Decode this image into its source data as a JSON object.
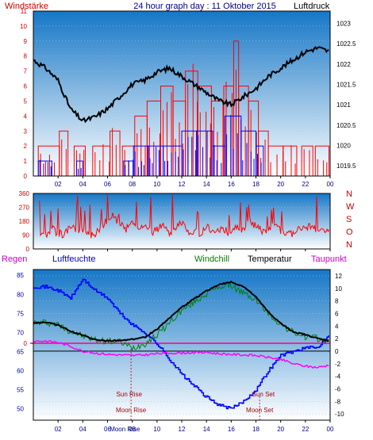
{
  "header": {
    "left_label": "Windstärke",
    "title": "24 hour graph day : 11 Oktober 2015",
    "right_label": "Luftdruck"
  },
  "colors": {
    "background": "#ffffff",
    "plot_top": "#1677c6",
    "plot_bottom": "#ffffff",
    "wind_gust": "#ff0000",
    "wind_speed": "#0000ff",
    "pressure": "#000000",
    "wind_dir": "#ff0000",
    "humidity": "#0000ff",
    "temperature": "#000000",
    "windchill": "#008000",
    "dewpoint": "#ff00ff",
    "zero_line": "#ff0080",
    "left_axis_red": "#cc0000",
    "blue_axis": "#000088",
    "right_axis": "#000000"
  },
  "chart_data": [
    {
      "type": "bar",
      "name": "wind-pressure",
      "x_ticks": [
        "02",
        "04",
        "06",
        "08",
        "10",
        "12",
        "14",
        "16",
        "18",
        "20",
        "22",
        "00"
      ],
      "left_axis": {
        "label": "Windstärke",
        "ticks": [
          "0",
          "1",
          "2",
          "3",
          "4",
          "5",
          "6",
          "7",
          "8",
          "9",
          "10",
          "11"
        ],
        "ylim": [
          0,
          11
        ]
      },
      "right_axis": {
        "label": "Luftdruck",
        "ticks": [
          "1019.5",
          "1020",
          "1020.5",
          "1021",
          "1021.5",
          "1022",
          "1022.5",
          "1023"
        ],
        "ylim": [
          1019.25,
          1023.3
        ]
      },
      "xlim": [
        0,
        24
      ],
      "gust_segments": [
        {
          "x": [
            0.4,
            2.1
          ],
          "v": 2
        },
        {
          "x": [
            2.1,
            2.8
          ],
          "v": 3
        },
        {
          "x": [
            3.3,
            4.2
          ],
          "v": 2
        },
        {
          "x": [
            4.8,
            6.2
          ],
          "v": 2
        },
        {
          "x": [
            6.2,
            7.0
          ],
          "v": 3
        },
        {
          "x": [
            7.2,
            8.2
          ],
          "v": 2
        },
        {
          "x": [
            8.2,
            9.2
          ],
          "v": 4
        },
        {
          "x": [
            9.2,
            10.3
          ],
          "v": 5
        },
        {
          "x": [
            10.3,
            11.3
          ],
          "v": 6
        },
        {
          "x": [
            11.3,
            12.3
          ],
          "v": 5
        },
        {
          "x": [
            12.3,
            13.3
          ],
          "v": 7
        },
        {
          "x": [
            13.3,
            14.4
          ],
          "v": 6
        },
        {
          "x": [
            14.4,
            15.4
          ],
          "v": 5
        },
        {
          "x": [
            15.4,
            16.2
          ],
          "v": 6
        },
        {
          "x": [
            16.2,
            16.6
          ],
          "v": 9
        },
        {
          "x": [
            16.6,
            17.4
          ],
          "v": 6
        },
        {
          "x": [
            17.4,
            18.2
          ],
          "v": 5
        },
        {
          "x": [
            18.2,
            19.0
          ],
          "v": 3
        },
        {
          "x": [
            19.0,
            20.2
          ],
          "v": 2
        },
        {
          "x": [
            20.2,
            21.3
          ],
          "v": 2
        },
        {
          "x": [
            21.7,
            22.6
          ],
          "v": 2
        },
        {
          "x": [
            22.8,
            23.9
          ],
          "v": 2
        }
      ],
      "speed_segments": [
        {
          "x": [
            0.4,
            1.5
          ],
          "v": 1
        },
        {
          "x": [
            3.5,
            4.0
          ],
          "v": 1
        },
        {
          "x": [
            7.3,
            8.1
          ],
          "v": 1
        },
        {
          "x": [
            8.1,
            9.3
          ],
          "v": 2
        },
        {
          "x": [
            9.3,
            10.5
          ],
          "v": 2
        },
        {
          "x": [
            10.5,
            12.0
          ],
          "v": 2
        },
        {
          "x": [
            12.0,
            13.2
          ],
          "v": 3
        },
        {
          "x": [
            13.2,
            14.5
          ],
          "v": 3
        },
        {
          "x": [
            14.5,
            15.5
          ],
          "v": 2
        },
        {
          "x": [
            15.5,
            16.8
          ],
          "v": 4
        },
        {
          "x": [
            16.8,
            18.0
          ],
          "v": 3
        },
        {
          "x": [
            18.0,
            18.6
          ],
          "v": 2
        }
      ],
      "pressure": {
        "x": [
          0,
          1,
          2,
          3,
          4,
          5,
          6,
          7,
          8,
          9,
          10,
          11,
          12,
          13,
          14,
          15,
          16,
          17,
          18,
          19,
          20,
          21,
          22,
          23,
          24
        ],
        "y": [
          1022.1,
          1021.9,
          1021.6,
          1020.9,
          1020.6,
          1020.7,
          1020.9,
          1021.2,
          1021.5,
          1021.6,
          1021.8,
          1021.9,
          1021.7,
          1021.5,
          1021.3,
          1021.1,
          1021.0,
          1021.2,
          1021.4,
          1021.7,
          1021.9,
          1022.1,
          1022.3,
          1022.4,
          1022.3
        ]
      }
    },
    {
      "type": "line",
      "name": "wind-direction",
      "x_ticks": [
        "02",
        "04",
        "06",
        "08",
        "10",
        "12",
        "14",
        "16",
        "18",
        "20",
        "22",
        "00"
      ],
      "left_ticks": [
        "0",
        "90",
        "180",
        "270",
        "360"
      ],
      "right_labels": [
        "N",
        "W",
        "S",
        "O",
        "N"
      ],
      "ylim": [
        0,
        360
      ],
      "series": [
        {
          "x": [
            0.5,
            1,
            1.5,
            2,
            2.5,
            3,
            3.5,
            4,
            4.5,
            5,
            5.5,
            6,
            6.5,
            7,
            7.5,
            8,
            8.5,
            9,
            9.5,
            10,
            10.5,
            11,
            11.5,
            12,
            12.5,
            13,
            13.5,
            14,
            14.5,
            15,
            15.5,
            16,
            16.5,
            17,
            17.5,
            18,
            18.5,
            19,
            19.5,
            20,
            20.5,
            21,
            21.5,
            22,
            22.5,
            23,
            23.5,
            24
          ],
          "y": [
            110,
            90,
            130,
            100,
            95,
            150,
            110,
            120,
            90,
            100,
            140,
            190,
            220,
            160,
            130,
            180,
            120,
            170,
            110,
            120,
            180,
            90,
            140,
            170,
            110,
            120,
            100,
            150,
            110,
            130,
            120,
            100,
            150,
            120,
            190,
            140,
            120,
            130,
            150,
            120,
            110,
            100,
            130,
            150,
            140,
            120,
            110,
            130
          ]
        }
      ]
    },
    {
      "type": "line",
      "name": "temperature-humidity",
      "x_ticks": [
        "02",
        "04",
        "06",
        "08",
        "10",
        "12",
        "14",
        "16",
        "18",
        "20",
        "22",
        "00"
      ],
      "left_axis": {
        "label": "Luftfeuchte",
        "ticks": [
          "50",
          "55",
          "60",
          "65",
          "70",
          "75",
          "80",
          "85"
        ],
        "ylim": [
          47,
          86.5
        ]
      },
      "right_axis": {
        "label": "Temperatur",
        "ticks": [
          "-10",
          "-8",
          "-6",
          "-4",
          "-2",
          "0",
          "2",
          "4",
          "6",
          "8",
          "10",
          "12"
        ],
        "ylim": [
          -11,
          13
        ]
      },
      "regen_axis": {
        "label": "Regen",
        "ticks": [
          "0"
        ]
      },
      "series": [
        {
          "name": "Luftfeuchte",
          "x": [
            0,
            1,
            2,
            3,
            4,
            5,
            6,
            7,
            8,
            9,
            10,
            11,
            12,
            13,
            14,
            15,
            16,
            17,
            18,
            19,
            20,
            21,
            22,
            23,
            24
          ],
          "y": [
            82,
            82,
            81,
            79,
            84,
            81,
            79,
            75,
            72,
            70,
            67,
            63,
            59,
            56,
            53,
            51,
            50,
            52,
            55,
            60,
            64,
            65,
            66,
            66,
            70
          ]
        },
        {
          "name": "Temperatur",
          "x": [
            0,
            1,
            2,
            3,
            4,
            5,
            6,
            7,
            8,
            9,
            10,
            11,
            12,
            13,
            14,
            15,
            16,
            17,
            18,
            19,
            20,
            21,
            22,
            23,
            24
          ],
          "y": [
            4.5,
            4.6,
            4.2,
            3.2,
            2.5,
            1.8,
            1.6,
            1.7,
            1.9,
            2.2,
            3.5,
            5.3,
            7.0,
            8.3,
            9.6,
            10.6,
            11.0,
            10.3,
            8.6,
            6.2,
            4.4,
            3.1,
            2.6,
            2.0,
            1.6
          ]
        },
        {
          "name": "Windchill",
          "x": [
            0,
            1,
            2,
            3,
            4,
            5,
            6,
            7,
            8,
            9,
            10,
            11,
            12,
            13,
            14,
            15,
            16,
            17,
            18,
            19,
            20,
            21,
            22,
            23,
            24
          ],
          "y": [
            4.5,
            4.6,
            4.2,
            3.2,
            2.4,
            1.8,
            1.6,
            1.5,
            0.5,
            1.2,
            2.6,
            4.5,
            6.5,
            7.8,
            9.2,
            10.3,
            10.5,
            9.2,
            8.2,
            6.0,
            4.3,
            3.0,
            2.3,
            2.0,
            1.5
          ]
        },
        {
          "name": "Taupunkt",
          "x": [
            0,
            1,
            2,
            3,
            4,
            5,
            6,
            7,
            8,
            9,
            10,
            11,
            12,
            13,
            14,
            15,
            16,
            17,
            18,
            19,
            20,
            21,
            22,
            23,
            24
          ],
          "y": [
            1.6,
            1.6,
            1.4,
            0.8,
            0.0,
            -0.3,
            -0.5,
            -0.6,
            -0.7,
            -0.6,
            -0.4,
            -0.3,
            -0.3,
            -0.2,
            -0.2,
            -0.4,
            -0.5,
            -0.6,
            -0.7,
            -1.0,
            -1.3,
            -2.0,
            -2.4,
            -2.6,
            -2.2
          ]
        }
      ],
      "events": [
        {
          "label": "Sun Rise",
          "hour": 7.75,
          "row": 1
        },
        {
          "label": "Moon Rise",
          "hour": 7.9,
          "row": 2
        },
        {
          "label": "Sun Set",
          "hour": 18.6,
          "row": 1
        },
        {
          "label": "Moon Set",
          "hour": 18.3,
          "row": 2
        }
      ],
      "extra_tick_label": "Moon Rise"
    }
  ]
}
